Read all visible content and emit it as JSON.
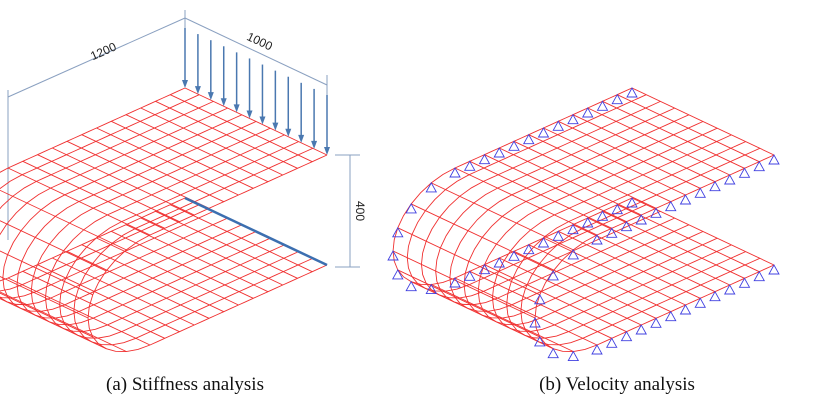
{
  "panels": [
    {
      "dimensions": [
        "1200",
        "1000",
        "400"
      ],
      "caption": "(a) Stiffness analysis"
    },
    {
      "caption": "(b) Velocity analysis"
    }
  ]
}
